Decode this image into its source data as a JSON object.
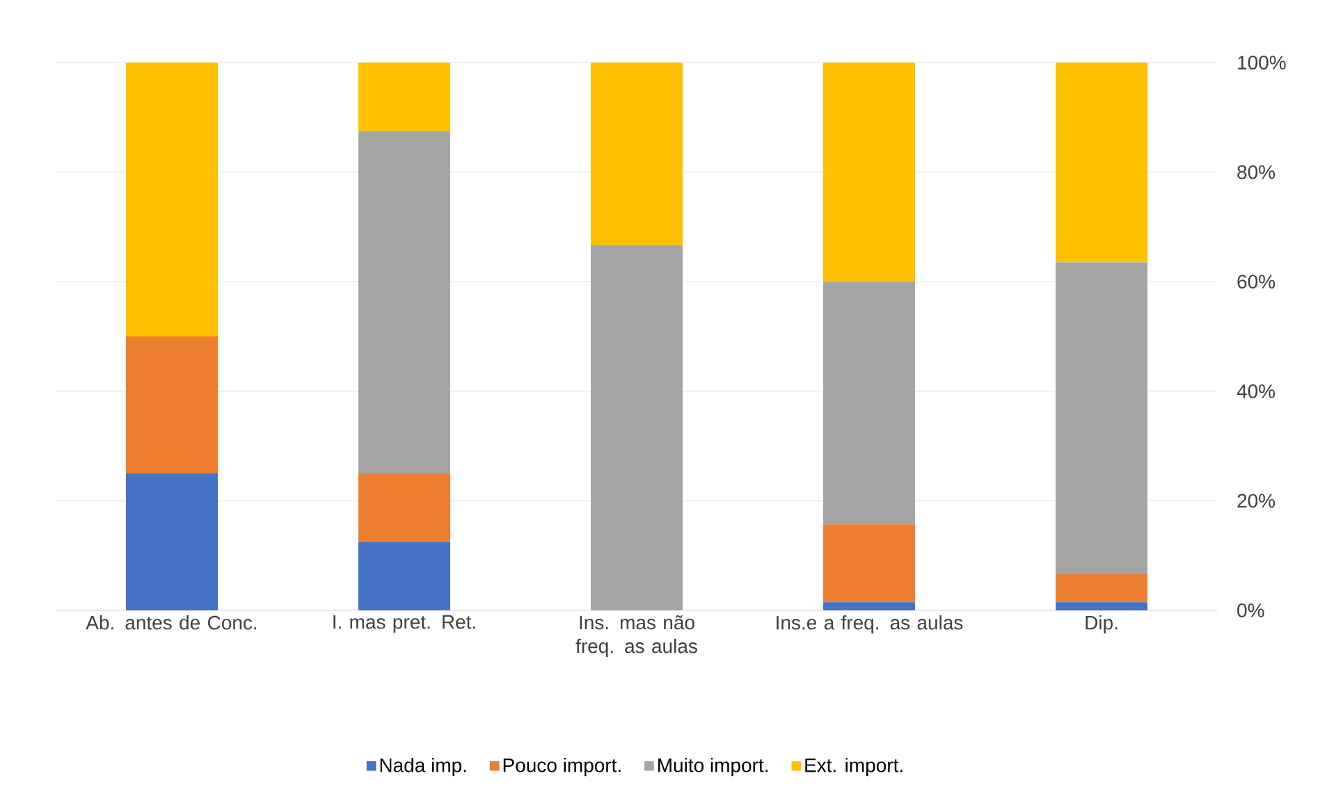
{
  "chart_data": {
    "type": "bar",
    "stacked": true,
    "categories": [
      "Ab. antes de Conc.",
      "I. mas pret. Ret.",
      "Ins. mas não freq. as aulas",
      "Ins.e a freq. as aulas",
      "Dip."
    ],
    "series": [
      {
        "name": "Nada imp.",
        "color": "#4472c4",
        "values": [
          25,
          12.5,
          0,
          1.5,
          1.5
        ]
      },
      {
        "name": "Pouco import.",
        "color": "#ed7d31",
        "values": [
          25,
          12.5,
          0,
          14.2,
          5.1
        ]
      },
      {
        "name": "Muito import.",
        "color": "#a5a5a5",
        "values": [
          0,
          62.5,
          66.7,
          44.3,
          56.9
        ]
      },
      {
        "name": "Ext. import.",
        "color": "#ffc000",
        "values": [
          50,
          12.5,
          33.3,
          40,
          36.5
        ]
      }
    ],
    "ylim": [
      0,
      100
    ],
    "yticks": [
      {
        "value": 0,
        "label": "0%"
      },
      {
        "value": 20,
        "label": "20%"
      },
      {
        "value": 40,
        "label": "40%"
      },
      {
        "value": 60,
        "label": "60%"
      },
      {
        "value": 80,
        "label": "80%"
      },
      {
        "value": 100,
        "label": "100%"
      }
    ],
    "grid": "y",
    "legend": "bottom"
  }
}
